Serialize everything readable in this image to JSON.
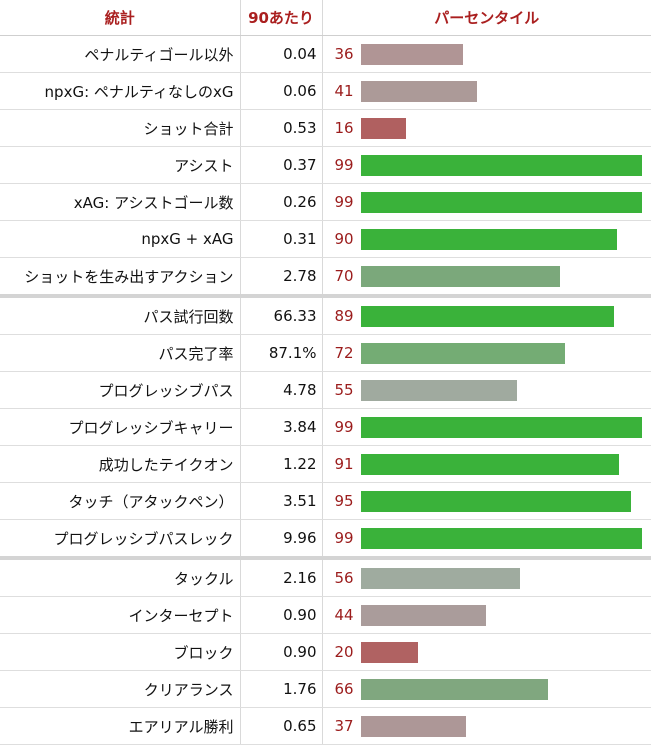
{
  "headers": {
    "stat": "統計",
    "per90": "90あたり",
    "percentile": "パーセンタイル"
  },
  "rows": [
    {
      "stat": "ペナルティゴール以外",
      "value": "0.04",
      "percentile": 36,
      "color": "#b09595"
    },
    {
      "stat": "npxG: ペナルティなしのxG",
      "value": "0.06",
      "percentile": 41,
      "color": "#ac9a98"
    },
    {
      "stat": "ショット合計",
      "value": "0.53",
      "percentile": 16,
      "color": "#b06060"
    },
    {
      "stat": "アシスト",
      "value": "0.37",
      "percentile": 99,
      "color": "#3ab23a"
    },
    {
      "stat": "xAG: アシストゴール数",
      "value": "0.26",
      "percentile": 99,
      "color": "#3ab23a"
    },
    {
      "stat": "npxG + xAG",
      "value": "0.31",
      "percentile": 90,
      "color": "#3ab23a"
    },
    {
      "stat": "ショットを生み出すアクション",
      "value": "2.78",
      "percentile": 70,
      "color": "#7ba87b"
    },
    {
      "stat": "パス試行回数",
      "value": "66.33",
      "percentile": 89,
      "color": "#3ab23a",
      "sep": true
    },
    {
      "stat": "パス完了率",
      "value": "87.1%",
      "percentile": 72,
      "color": "#74ac74"
    },
    {
      "stat": "プログレッシブパス",
      "value": "4.78",
      "percentile": 55,
      "color": "#a0aa9f"
    },
    {
      "stat": "プログレッシブキャリー",
      "value": "3.84",
      "percentile": 99,
      "color": "#3ab23a"
    },
    {
      "stat": "成功したテイクオン",
      "value": "1.22",
      "percentile": 91,
      "color": "#3ab23a"
    },
    {
      "stat": "タッチ（アタックペン）",
      "value": "3.51",
      "percentile": 95,
      "color": "#3ab23a"
    },
    {
      "stat": "プログレッシブパスレック",
      "value": "9.96",
      "percentile": 99,
      "color": "#3ab23a"
    },
    {
      "stat": "タックル",
      "value": "2.16",
      "percentile": 56,
      "color": "#9fab9f",
      "sep": true
    },
    {
      "stat": "インターセプト",
      "value": "0.90",
      "percentile": 44,
      "color": "#aa9c9b"
    },
    {
      "stat": "ブロック",
      "value": "0.90",
      "percentile": 20,
      "color": "#b06262"
    },
    {
      "stat": "クリアランス",
      "value": "1.76",
      "percentile": 66,
      "color": "#80a77f"
    },
    {
      "stat": "エアリアル勝利",
      "value": "0.65",
      "percentile": 37,
      "color": "#ad9797"
    }
  ]
}
